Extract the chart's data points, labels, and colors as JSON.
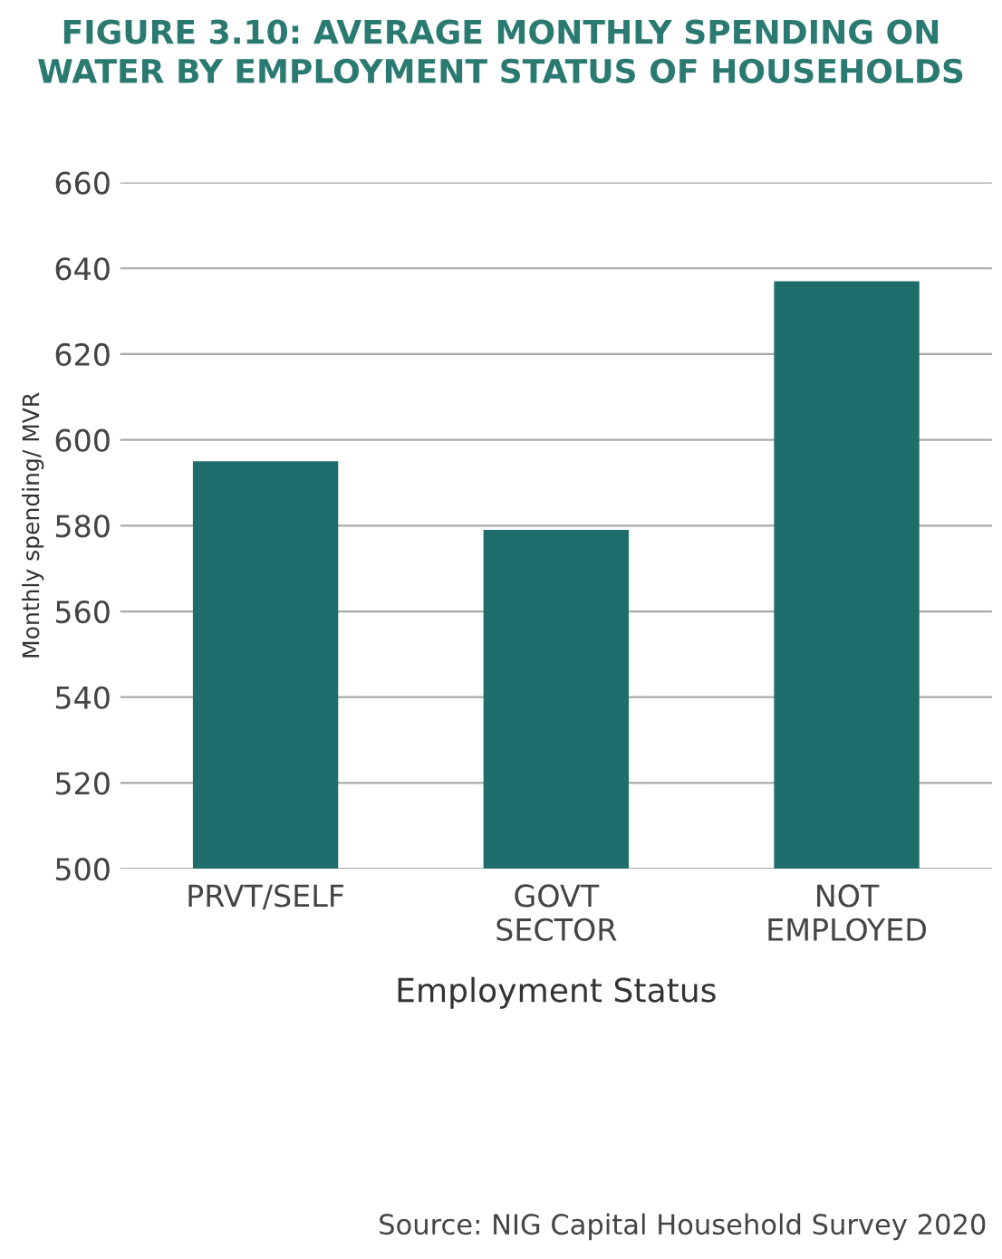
{
  "chart_data": {
    "type": "bar",
    "title": "FIGURE 3.10: AVERAGE MONTHLY SPENDING ON\nWATER BY EMPLOYMENT STATUS OF HOUSEHOLDS",
    "xlabel": "Employment Status",
    "ylabel": "Monthly spending/ MVR",
    "categories": [
      "PRVT/SELF",
      "GOVT\nSECTOR",
      "NOT\nEMPLOYED"
    ],
    "values": [
      595,
      579,
      637
    ],
    "color": "#1f6e6b",
    "ylim": [
      500,
      660
    ],
    "yticks": [
      500,
      520,
      540,
      560,
      580,
      600,
      620,
      640,
      660
    ],
    "grid": "y",
    "annotations": [
      "Source: NIG Capital Household Survey 2020"
    ]
  }
}
